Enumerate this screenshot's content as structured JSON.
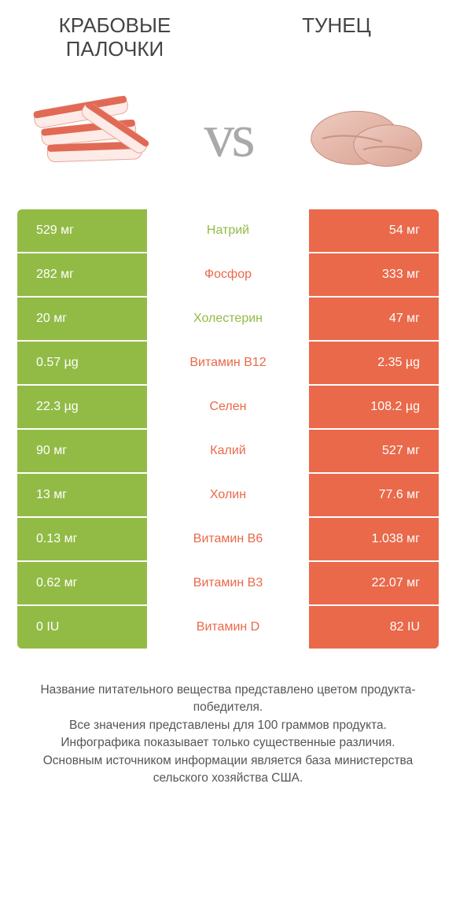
{
  "colors": {
    "green": "#92bb46",
    "orange": "#e9694a",
    "row_gap": "#ffffff",
    "label_green": "#92bb46",
    "label_orange": "#e9694a",
    "vs_gray": "#a9a9a9",
    "title_gray": "#444444",
    "footer_gray": "#555555"
  },
  "titles": {
    "left": "Крабовые палочки",
    "right": "Тунец"
  },
  "vs_text": "vs",
  "rows": [
    {
      "label": "Натрий",
      "left": "529 мг",
      "right": "54 мг",
      "winner": "left"
    },
    {
      "label": "Фосфор",
      "left": "282 мг",
      "right": "333 мг",
      "winner": "right"
    },
    {
      "label": "Холестерин",
      "left": "20 мг",
      "right": "47 мг",
      "winner": "left"
    },
    {
      "label": "Витамин B12",
      "left": "0.57 µg",
      "right": "2.35 µg",
      "winner": "right"
    },
    {
      "label": "Селен",
      "left": "22.3 µg",
      "right": "108.2 µg",
      "winner": "right"
    },
    {
      "label": "Калий",
      "left": "90 мг",
      "right": "527 мг",
      "winner": "right"
    },
    {
      "label": "Холин",
      "left": "13 мг",
      "right": "77.6 мг",
      "winner": "right"
    },
    {
      "label": "Витамин B6",
      "left": "0.13 мг",
      "right": "1.038 мг",
      "winner": "right"
    },
    {
      "label": "Витамин B3",
      "left": "0.62 мг",
      "right": "22.07 мг",
      "winner": "right"
    },
    {
      "label": "Витамин D",
      "left": "0 IU",
      "right": "82 IU",
      "winner": "right"
    }
  ],
  "footer": {
    "l1": "Название питательного вещества представлено цветом продукта-победителя.",
    "l2": "Все значения представлены для 100 граммов продукта.",
    "l3": "Инфографика показывает только существенные различия.",
    "l4": "Основным источником информации является база министерства сельского хозяйства США."
  }
}
